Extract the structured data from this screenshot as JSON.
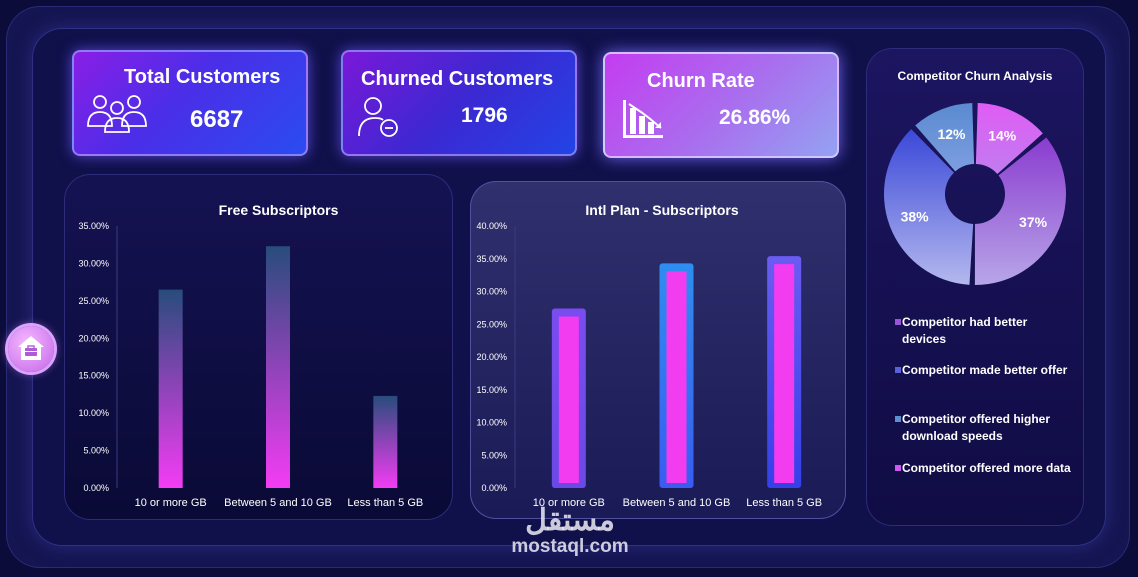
{
  "kpis": {
    "total_customers": {
      "label": "Total Customers",
      "value": "6687"
    },
    "churned_customers": {
      "label": "Churned Customers",
      "value": "1796"
    },
    "churn_rate": {
      "label": "Churn Rate",
      "value": "26.86%"
    }
  },
  "colors": {
    "background": "#0c0c3a",
    "bar_top_free": "#2a4a7a",
    "bar_bottom_free": "#f03cf4",
    "bar_inner_intl": "#f23cf0",
    "accent_purple": "#8a1ee6",
    "accent_blue": "#2a4cf0"
  },
  "watermark": {
    "arabic": "مستقل",
    "latin": "mostaql.com"
  },
  "chart_data": [
    {
      "type": "bar",
      "title": "Free Subscriptors",
      "categories": [
        "10 or more GB",
        "Between 5 and 10 GB",
        "Less than 5 GB"
      ],
      "values": [
        26.5,
        32.3,
        12.3
      ],
      "y_ticks": [
        "0.00%",
        "5.00%",
        "10.00%",
        "15.00%",
        "20.00%",
        "25.00%",
        "30.00%",
        "35.00%"
      ],
      "ylim": [
        0,
        35
      ],
      "grid": false
    },
    {
      "type": "bar",
      "title": "Intl Plan - Subscriptors",
      "categories": [
        "10 or more GB",
        "Between 5 and 10 GB",
        "Less than 5 GB"
      ],
      "values": [
        27.4,
        34.3,
        35.4
      ],
      "y_ticks": [
        "0.00%",
        "5.00%",
        "10.00%",
        "15.00%",
        "20.00%",
        "25.00%",
        "30.00%",
        "35.00%",
        "40.00%"
      ],
      "ylim": [
        0,
        40
      ],
      "grid": false
    },
    {
      "type": "pie",
      "title": "Competitor Churn Analysis",
      "labels": [
        "Competitor had better devices",
        "Competitor made better offer",
        "Competitor offered higher download speeds",
        "Competitor offered more data"
      ],
      "values": [
        37,
        38,
        12,
        14
      ],
      "value_labels": [
        "37%",
        "38%",
        "12%",
        "14%"
      ],
      "colors": [
        "#9a54d8",
        "#5a62d8",
        "#5c8ed0",
        "#d058f2"
      ],
      "legend_position": "bottom"
    }
  ]
}
